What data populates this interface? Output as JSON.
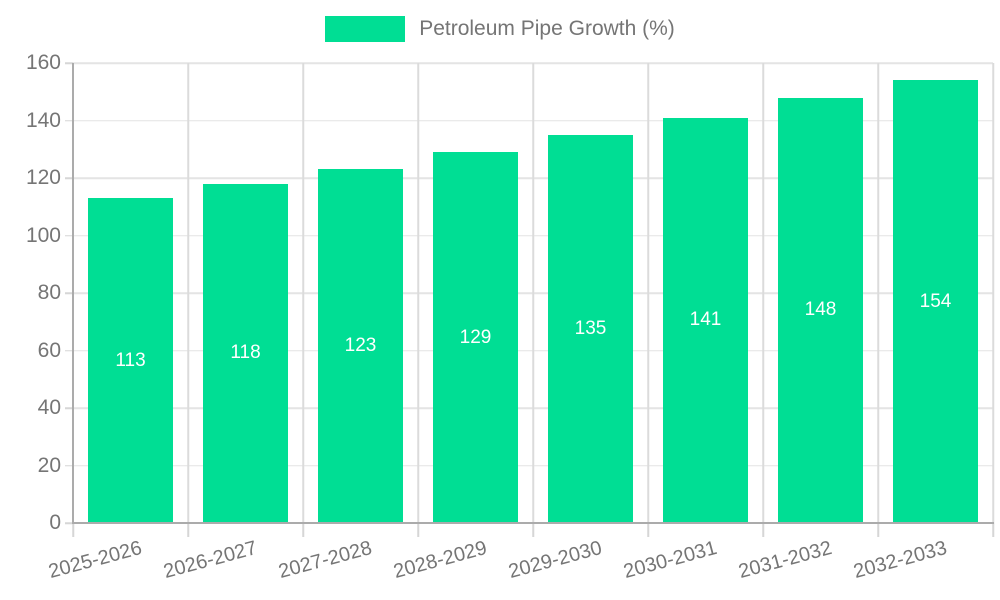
{
  "chart_data": {
    "type": "bar",
    "title": "",
    "legend": [
      "Petroleum Pipe Growth (%)"
    ],
    "legend_position": "top-center",
    "categories": [
      "2025-2026",
      "2026-2027",
      "2027-2028",
      "2028-2029",
      "2029-2030",
      "2030-2031",
      "2031-2032",
      "2032-2033"
    ],
    "values": [
      113,
      118,
      123,
      129,
      135,
      141,
      148,
      154
    ],
    "series_name": "Petroleum Pipe Growth (%)",
    "xlabel": "",
    "ylabel": "",
    "ylim": [
      0,
      160
    ],
    "ytick_interval": 20,
    "yticks": [
      0,
      20,
      40,
      60,
      80,
      100,
      120,
      140,
      160
    ],
    "grid": true,
    "bar_value_labels_shown": true,
    "x_label_rotation_deg": -15
  },
  "colors": {
    "bar": "#00DE94",
    "bar_label": "#FFFFFF",
    "text": "#757575",
    "grid_h": "#E4E4E4",
    "grid_v": "#DBDBDB",
    "axis": "#ABABAB",
    "tick": "#D6D6D6",
    "background": "#FFFFFF"
  }
}
